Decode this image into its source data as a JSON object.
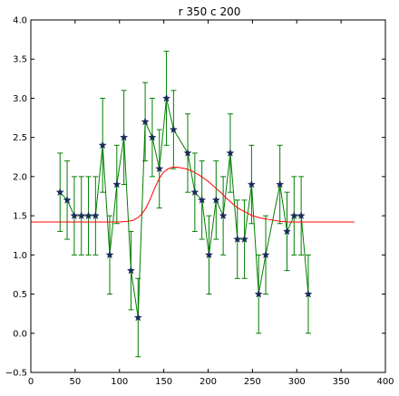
{
  "chart_data": {
    "type": "line",
    "title": "r 350 c 200",
    "xlabel": "",
    "ylabel": "",
    "xlim": [
      0,
      400
    ],
    "ylim": [
      -0.5,
      4.0
    ],
    "xticks": [
      0,
      50,
      100,
      150,
      200,
      250,
      300,
      350,
      400
    ],
    "yticks": [
      -0.5,
      0.0,
      0.5,
      1.0,
      1.5,
      2.0,
      2.5,
      3.0,
      3.5,
      4.0
    ],
    "xtick_labels": [
      "0",
      "50",
      "100",
      "150",
      "200",
      "250",
      "300",
      "350",
      "400"
    ],
    "ytick_labels": [
      "−0.5",
      "0.0",
      "0.5",
      "1.0",
      "1.5",
      "2.0",
      "2.5",
      "3.0",
      "3.5",
      "4.0"
    ],
    "grid": false,
    "legend": "none",
    "series": [
      {
        "kind": "errorbar",
        "color": "#007f00",
        "marker_color": "#1a2a5a",
        "marker": "star",
        "x": [
          33,
          41,
          49,
          57,
          65,
          73,
          81,
          89,
          97,
          105,
          113,
          121,
          129,
          137,
          145,
          153,
          161,
          177,
          185,
          193,
          201,
          209,
          217,
          225,
          233,
          241,
          249,
          257,
          265,
          281,
          289,
          297,
          305,
          313
        ],
        "y": [
          1.8,
          1.7,
          1.5,
          1.5,
          1.5,
          1.5,
          2.4,
          1.0,
          1.9,
          2.5,
          0.8,
          0.2,
          2.7,
          2.5,
          2.1,
          3.0,
          2.6,
          2.3,
          1.8,
          1.7,
          1.0,
          1.7,
          1.5,
          2.3,
          1.2,
          1.2,
          1.9,
          0.5,
          1.0,
          1.9,
          1.3,
          1.5,
          1.5,
          0.5
        ],
        "yerr": [
          0.5,
          0.5,
          0.5,
          0.5,
          0.5,
          0.5,
          0.6,
          0.5,
          0.5,
          0.6,
          0.5,
          0.5,
          0.5,
          0.5,
          0.5,
          0.6,
          0.5,
          0.5,
          0.5,
          0.5,
          0.5,
          0.5,
          0.5,
          0.5,
          0.5,
          0.5,
          0.5,
          0.5,
          0.5,
          0.5,
          0.5,
          0.5,
          0.5,
          0.5
        ]
      },
      {
        "kind": "line",
        "color": "#ff0000",
        "x": [
          0,
          100,
          110,
          115,
          120,
          125,
          130,
          135,
          140,
          145,
          150,
          155,
          160,
          165,
          170,
          175,
          180,
          185,
          190,
          195,
          200,
          205,
          210,
          215,
          220,
          225,
          230,
          235,
          240,
          245,
          250,
          260,
          270,
          280,
          290,
          300,
          365
        ],
        "y": [
          1.42,
          1.42,
          1.43,
          1.44,
          1.47,
          1.52,
          1.6,
          1.72,
          1.86,
          1.98,
          2.06,
          2.1,
          2.12,
          2.12,
          2.11,
          2.1,
          2.08,
          2.05,
          2.02,
          1.98,
          1.94,
          1.89,
          1.84,
          1.79,
          1.73,
          1.68,
          1.63,
          1.59,
          1.56,
          1.53,
          1.5,
          1.47,
          1.45,
          1.43,
          1.42,
          1.42,
          1.42
        ]
      }
    ]
  }
}
